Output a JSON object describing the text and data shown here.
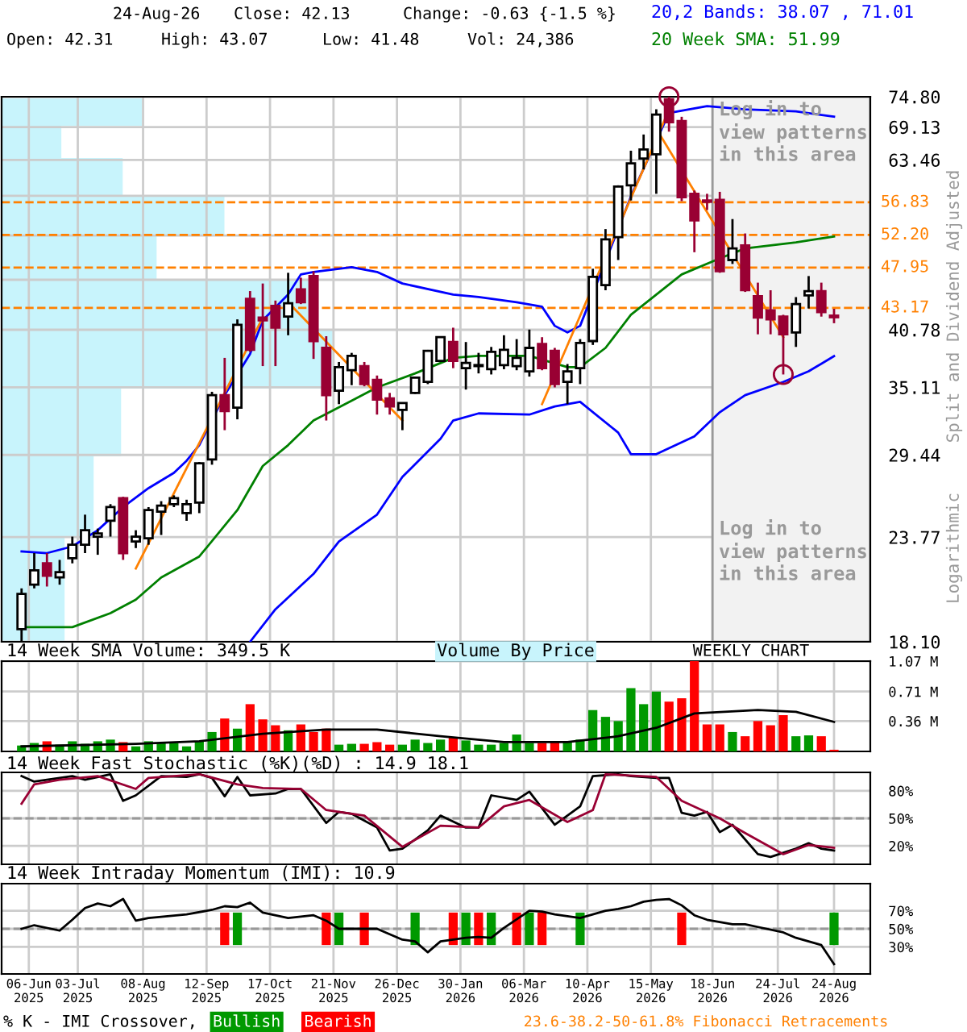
{
  "chart_data": [
    {
      "type": "candlestick",
      "x": [
        "2025-06-02",
        "2025-06-09",
        "2025-06-16",
        "2025-06-23",
        "2025-06-30",
        "2025-07-07",
        "2025-07-14",
        "2025-07-21",
        "2025-07-28",
        "2025-08-04",
        "2025-08-11",
        "2025-08-18",
        "2025-08-25",
        "2025-09-01",
        "2025-09-08",
        "2025-09-15",
        "2025-09-22",
        "2025-09-29",
        "2025-10-06",
        "2025-10-13",
        "2025-10-20",
        "2025-10-27",
        "2025-11-03",
        "2025-11-10",
        "2025-11-17",
        "2025-11-24",
        "2025-12-01",
        "2025-12-08",
        "2025-12-15",
        "2025-12-22",
        "2025-12-29",
        "2026-01-05",
        "2026-01-12",
        "2026-01-19",
        "2026-01-26",
        "2026-02-02",
        "2026-02-09",
        "2026-02-16",
        "2026-02-23",
        "2026-03-02",
        "2026-03-09",
        "2026-03-16",
        "2026-03-23",
        "2026-03-30",
        "2026-04-06",
        "2026-04-13",
        "2026-04-20",
        "2026-04-27",
        "2026-05-04",
        "2026-05-11",
        "2026-05-18",
        "2026-05-25",
        "2026-06-01",
        "2026-06-08",
        "2026-06-15",
        "2026-06-22",
        "2026-06-29",
        "2026-07-06",
        "2026-07-13",
        "2026-07-20",
        "2026-07-27",
        "2026-08-03",
        "2026-08-10",
        "2026-08-17",
        "2026-08-24"
      ],
      "ohlc": [
        [
          18.7,
          20.8,
          18.1,
          20.5
        ],
        [
          21.0,
          22.8,
          20.8,
          21.8
        ],
        [
          22.2,
          22.8,
          20.9,
          21.5
        ],
        [
          21.4,
          22.4,
          21.0,
          21.7
        ],
        [
          22.5,
          23.8,
          22.2,
          23.3
        ],
        [
          23.3,
          25.2,
          22.8,
          24.2
        ],
        [
          23.8,
          24.3,
          22.7,
          24.0
        ],
        [
          24.8,
          25.9,
          23.8,
          25.7
        ],
        [
          26.3,
          26.4,
          22.4,
          22.8
        ],
        [
          23.5,
          24.2,
          23.1,
          23.8
        ],
        [
          23.7,
          25.7,
          23.3,
          25.5
        ],
        [
          25.4,
          26.1,
          23.9,
          25.8
        ],
        [
          25.9,
          26.5,
          25.7,
          26.3
        ],
        [
          25.3,
          26.2,
          24.8,
          25.9
        ],
        [
          26.0,
          28.9,
          25.3,
          28.8
        ],
        [
          29.1,
          34.7,
          28.7,
          34.4
        ],
        [
          34.4,
          37.9,
          31.4,
          33.0
        ],
        [
          33.3,
          41.9,
          32.3,
          41.3
        ],
        [
          44.2,
          45.1,
          38.5,
          38.7
        ],
        [
          42.1,
          46.0,
          37.1,
          41.8
        ],
        [
          43.4,
          44.0,
          37.1,
          41.0
        ],
        [
          42.2,
          47.3,
          40.2,
          43.7
        ],
        [
          45.3,
          46.7,
          43.6,
          43.8
        ],
        [
          46.9,
          47.5,
          37.8,
          39.6
        ],
        [
          38.9,
          40.1,
          32.2,
          34.4
        ],
        [
          34.8,
          37.5,
          33.6,
          37.0
        ],
        [
          36.7,
          38.4,
          35.3,
          38.1
        ],
        [
          37.1,
          37.5,
          35.2,
          35.4
        ],
        [
          35.8,
          36.2,
          32.7,
          34.0
        ],
        [
          34.1,
          34.6,
          32.7,
          33.4
        ],
        [
          33.1,
          33.7,
          31.4,
          33.7
        ],
        [
          34.6,
          36.1,
          34.5,
          36.0
        ],
        [
          35.6,
          38.7,
          35.4,
          38.6
        ],
        [
          37.6,
          40.1,
          37.5,
          40.0
        ],
        [
          39.5,
          41.0,
          36.9,
          37.6
        ],
        [
          36.9,
          39.5,
          34.9,
          37.4
        ],
        [
          37.1,
          38.4,
          36.4,
          37.2
        ],
        [
          36.8,
          39.0,
          36.3,
          38.5
        ],
        [
          37.2,
          40.2,
          36.8,
          38.7
        ],
        [
          37.1,
          39.8,
          36.7,
          37.9
        ],
        [
          36.6,
          40.8,
          36.1,
          38.9
        ],
        [
          39.3,
          40.0,
          36.7,
          36.9
        ],
        [
          38.6,
          38.9,
          35.1,
          35.4
        ],
        [
          35.6,
          37.3,
          33.6,
          36.6
        ],
        [
          36.9,
          39.8,
          35.4,
          39.4
        ],
        [
          39.6,
          47.8,
          39.2,
          46.8
        ],
        [
          45.8,
          53.0,
          45.2,
          51.6
        ],
        [
          51.9,
          59.4,
          48.9,
          59.2
        ],
        [
          59.4,
          65.0,
          57.1,
          62.9
        ],
        [
          63.7,
          67.8,
          61.9,
          65.2
        ],
        [
          64.4,
          72.4,
          58.1,
          71.4
        ],
        [
          74.3,
          74.8,
          68.3,
          70.0
        ],
        [
          70.2,
          71.0,
          57.0,
          57.6
        ],
        [
          58.1,
          58.6,
          49.9,
          54.2
        ],
        [
          57.1,
          58.1,
          55.7,
          56.9
        ],
        [
          57.2,
          58.4,
          47.3,
          47.5
        ],
        [
          48.9,
          54.4,
          48.4,
          50.4
        ],
        [
          50.8,
          52.4,
          45.0,
          45.2
        ],
        [
          44.5,
          46.1,
          40.3,
          42.1
        ],
        [
          42.9,
          45.2,
          40.3,
          41.9
        ],
        [
          42.2,
          42.4,
          36.3,
          40.3
        ],
        [
          40.5,
          44.4,
          39.0,
          43.6
        ],
        [
          44.6,
          46.9,
          43.1,
          45.1
        ],
        [
          45.1,
          46.1,
          42.2,
          42.7
        ],
        [
          42.31,
          43.07,
          41.48,
          42.13
        ]
      ],
      "colors": [
        "#ffffff",
        "#ffffff",
        "#990033",
        "#ffffff",
        "#ffffff",
        "#ffffff",
        "#ffffff",
        "#ffffff",
        "#990033",
        "#ffffff",
        "#ffffff",
        "#ffffff",
        "#ffffff",
        "#ffffff",
        "#ffffff",
        "#ffffff",
        "#990033",
        "#ffffff",
        "#990033",
        "#990033",
        "#990033",
        "#ffffff",
        "#990033",
        "#990033",
        "#990033",
        "#ffffff",
        "#ffffff",
        "#990033",
        "#990033",
        "#990033",
        "#ffffff",
        "#ffffff",
        "#ffffff",
        "#ffffff",
        "#990033",
        "#ffffff",
        "#ffffff",
        "#ffffff",
        "#ffffff",
        "#ffffff",
        "#ffffff",
        "#990033",
        "#990033",
        "#ffffff",
        "#ffffff",
        "#ffffff",
        "#ffffff",
        "#ffffff",
        "#ffffff",
        "#ffffff",
        "#ffffff",
        "#990033",
        "#990033",
        "#990033",
        "#990033",
        "#990033",
        "#ffffff",
        "#990033",
        "#990033",
        "#990033",
        "#990033",
        "#ffffff",
        "#ffffff",
        "#990033",
        "#990033"
      ],
      "series": [
        {
          "type": "line",
          "name": "20,2 Bands: 38.07 , 71.01",
          "color": "#0000ff",
          "x": [
            "2025-06-02",
            "2025-06-16",
            "2025-06-30",
            "2025-07-14",
            "2025-07-28",
            "2025-08-11",
            "2025-08-25",
            "2025-09-01",
            "2025-09-08",
            "2025-09-22",
            "2025-10-06",
            "2025-10-13",
            "2025-10-27",
            "2025-11-03",
            "2025-11-10",
            "2025-12-01",
            "2025-12-15",
            "2025-12-29",
            "2026-01-26",
            "2026-02-09",
            "2026-03-02",
            "2026-03-16",
            "2026-03-23",
            "2026-03-30",
            "2026-04-06",
            "2026-05-04",
            "2026-05-25",
            "2026-06-15",
            "2026-07-06",
            "2026-08-03",
            "2026-08-24"
          ],
          "values": [
            22.9,
            22.8,
            23.2,
            24.2,
            25.7,
            27.0,
            28.1,
            29.0,
            30.2,
            34.4,
            38.3,
            41.8,
            44.7,
            47.1,
            47.4,
            48.0,
            47.4,
            46.0,
            44.7,
            44.4,
            43.8,
            43.3,
            41.2,
            40.5,
            41.2,
            57.7,
            71.7,
            73.0,
            72.4,
            72.0,
            71.01
          ]
        },
        {
          "type": "line",
          "color": "#0000ff",
          "x": [
            "2025-10-06",
            "2025-10-20",
            "2025-11-10",
            "2025-11-24",
            "2025-12-15",
            "2025-12-29",
            "2026-01-19",
            "2026-01-26",
            "2026-02-09",
            "2026-03-09",
            "2026-03-23",
            "2026-04-06",
            "2026-04-27",
            "2026-05-04",
            "2026-05-18",
            "2026-06-08",
            "2026-06-22",
            "2026-07-06",
            "2026-07-27",
            "2026-08-10",
            "2026-08-24"
          ],
          "values": [
            18.1,
            19.7,
            21.6,
            23.5,
            25.2,
            27.8,
            30.7,
            32.2,
            32.8,
            32.7,
            33.4,
            33.8,
            31.2,
            29.5,
            29.5,
            30.9,
            32.9,
            34.4,
            35.6,
            36.6,
            38.07
          ]
        },
        {
          "type": "line",
          "name": "20 Week SMA: 51.99",
          "color": "#008000",
          "x": [
            "2025-06-02",
            "2025-06-30",
            "2025-07-21",
            "2025-08-04",
            "2025-08-18",
            "2025-09-08",
            "2025-09-29",
            "2025-10-13",
            "2025-10-27",
            "2025-11-10",
            "2025-12-01",
            "2025-12-15",
            "2026-01-05",
            "2026-01-26",
            "2026-02-09",
            "2026-03-09",
            "2026-03-30",
            "2026-04-06",
            "2026-04-20",
            "2026-05-04",
            "2026-06-01",
            "2026-06-22",
            "2026-07-06",
            "2026-08-03",
            "2026-08-24"
          ],
          "values": [
            18.8,
            18.8,
            19.5,
            20.2,
            21.4,
            22.6,
            25.5,
            28.6,
            30.2,
            32.2,
            33.9,
            35.1,
            36.4,
            37.9,
            38.1,
            38.1,
            37.0,
            37.0,
            38.9,
            42.4,
            47.1,
            49.1,
            50.4,
            51.2,
            51.99
          ]
        },
        {
          "type": "line",
          "color": "#ff8000",
          "x": [
            "2025-08-04",
            "2025-10-13"
          ],
          "values": [
            21.9,
            42.1
          ]
        },
        {
          "type": "line",
          "color": "#ff8000",
          "x": [
            "2025-10-27",
            "2025-12-29"
          ],
          "values": [
            43.8,
            32.2
          ]
        },
        {
          "type": "line",
          "color": "#ff8000",
          "x": [
            "2026-03-16",
            "2026-05-25"
          ],
          "values": [
            33.6,
            72.3
          ]
        },
        {
          "type": "line",
          "color": "#ff8000",
          "x": [
            "2026-05-18",
            "2026-07-27"
          ],
          "values": [
            68.8,
            40.0
          ]
        },
        {
          "type": "scatter",
          "marker": "circle",
          "color": "#990033",
          "x": [
            "2026-05-25",
            "2026-07-27"
          ],
          "values": [
            74.8,
            36.3
          ]
        }
      ],
      "xlim": [
        "2025-05-22",
        "2026-09-13"
      ],
      "xticks": [
        {
          "value": "2025-06-06",
          "label": null
        },
        {
          "value": "2025-07-03",
          "label": null
        },
        {
          "value": "2025-08-08",
          "label": null
        },
        {
          "value": "2025-09-12",
          "label": null
        },
        {
          "value": "2025-10-17",
          "label": null
        },
        {
          "value": "2025-11-21",
          "label": null
        },
        {
          "value": "2025-12-26",
          "label": null
        },
        {
          "value": "2026-01-30",
          "label": null
        },
        {
          "value": "2026-03-06",
          "label": null
        },
        {
          "value": "2026-04-10",
          "label": null
        },
        {
          "value": "2026-05-15",
          "label": null
        },
        {
          "value": "2026-06-18",
          "label": null
        },
        {
          "value": "2026-07-24",
          "label": null
        },
        {
          "value": "2026-08-24",
          "label": null
        }
      ],
      "ylim": [
        18.1,
        74.8
      ],
      "log": true,
      "yticks": [
        {
          "value": 18.1,
          "label": "18.10"
        },
        23.77,
        29.44,
        35.11,
        40.78,
        {
          "value": 46.45,
          "label": null
        },
        {
          "value": 52.12,
          "label": null
        },
        {
          "value": 57.79,
          "label": null
        },
        63.46,
        69.13,
        {
          "value": 74.8,
          "label": "74.80"
        }
      ],
      "grid": true,
      "tick_labels": "y",
      "legend": "top right",
      "ref_lines": [
        {
          "axis": "y",
          "value": 56.83,
          "label": "56.83",
          "color": "#ff8000",
          "line_style": "dashed"
        },
        {
          "axis": "y",
          "value": 52.2,
          "label": "52.20",
          "color": "#ff8000",
          "line_style": "dashed"
        },
        {
          "axis": "y",
          "value": 47.95,
          "label": "47.95",
          "color": "#ff8000",
          "line_style": "dashed"
        },
        {
          "axis": "y",
          "value": 43.17,
          "label": "43.17",
          "color": "#ff8000",
          "line_style": "dashed"
        }
      ],
      "bands": [
        {
          "axis": "x",
          "from": "2026-06-18",
          "to": "2026-09-13",
          "color": "#f2f2f2"
        }
      ],
      "annotations": [
        "Log in to\nview patterns\nin this area",
        "Log in to\nview patterns\nin this area",
        "Split and Dividend Adjusted",
        "Logarithmic",
        "24-Aug-26",
        "Close: 42.13",
        "Change: -0.63 {-1.5 %}",
        "Open: 42.31",
        "High: 43.07",
        "Low: 41.48",
        "Vol: 24,386"
      ]
    },
    {
      "type": "bar",
      "title": "14 Week SMA Volume: 349.5 K",
      "x": [
        "2025-06-02",
        "2025-06-09",
        "2025-06-16",
        "2025-06-23",
        "2025-06-30",
        "2025-07-07",
        "2025-07-14",
        "2025-07-21",
        "2025-07-28",
        "2025-08-04",
        "2025-08-11",
        "2025-08-18",
        "2025-08-25",
        "2025-09-01",
        "2025-09-08",
        "2025-09-15",
        "2025-09-22",
        "2025-09-29",
        "2025-10-06",
        "2025-10-13",
        "2025-10-20",
        "2025-10-27",
        "2025-11-03",
        "2025-11-10",
        "2025-11-17",
        "2025-11-24",
        "2025-12-01",
        "2025-12-08",
        "2025-12-15",
        "2025-12-22",
        "2025-12-29",
        "2026-01-05",
        "2026-01-12",
        "2026-01-19",
        "2026-01-26",
        "2026-02-02",
        "2026-02-09",
        "2026-02-16",
        "2026-02-23",
        "2026-03-02",
        "2026-03-09",
        "2026-03-16",
        "2026-03-23",
        "2026-03-30",
        "2026-04-06",
        "2026-04-13",
        "2026-04-20",
        "2026-04-27",
        "2026-05-04",
        "2026-05-11",
        "2026-05-18",
        "2026-05-25",
        "2026-06-01",
        "2026-06-08",
        "2026-06-15",
        "2026-06-22",
        "2026-06-29",
        "2026-07-06",
        "2026-07-13",
        "2026-07-20",
        "2026-07-27",
        "2026-08-03",
        "2026-08-10",
        "2026-08-17",
        "2026-08-24"
      ],
      "series": [
        {
          "type": "bar",
          "colors": [
            "#009900",
            "#009900",
            "#ff0000",
            "#009900",
            "#009900",
            "#009900",
            "#009900",
            "#009900",
            "#ff0000",
            "#009900",
            "#009900",
            "#009900",
            "#009900",
            "#009900",
            "#009900",
            "#009900",
            "#ff0000",
            "#009900",
            "#ff0000",
            "#ff0000",
            "#ff0000",
            "#009900",
            "#ff0000",
            "#ff0000",
            "#ff0000",
            "#009900",
            "#009900",
            "#ff0000",
            "#ff0000",
            "#ff0000",
            "#009900",
            "#009900",
            "#009900",
            "#009900",
            "#ff0000",
            "#009900",
            "#009900",
            "#009900",
            "#009900",
            "#009900",
            "#009900",
            "#ff0000",
            "#ff0000",
            "#009900",
            "#009900",
            "#009900",
            "#009900",
            "#009900",
            "#009900",
            "#009900",
            "#009900",
            "#ff0000",
            "#ff0000",
            "#ff0000",
            "#ff0000",
            "#ff0000",
            "#009900",
            "#ff0000",
            "#ff0000",
            "#ff0000",
            "#ff0000",
            "#009900",
            "#009900",
            "#ff0000",
            "#ff0000"
          ],
          "values": [
            0.07,
            0.1,
            0.12,
            0.08,
            0.12,
            0.09,
            0.12,
            0.14,
            0.11,
            0.06,
            0.12,
            0.1,
            0.1,
            0.06,
            0.12,
            0.23,
            0.39,
            0.27,
            0.56,
            0.38,
            0.31,
            0.25,
            0.32,
            0.23,
            0.27,
            0.08,
            0.09,
            0.09,
            0.11,
            0.08,
            0.08,
            0.14,
            0.1,
            0.14,
            0.17,
            0.13,
            0.08,
            0.08,
            0.1,
            0.2,
            0.1,
            0.1,
            0.12,
            0.11,
            0.14,
            0.49,
            0.41,
            0.36,
            0.75,
            0.56,
            0.71,
            0.59,
            0.63,
            1.07,
            0.32,
            0.32,
            0.23,
            0.18,
            0.36,
            0.31,
            0.43,
            0.18,
            0.19,
            0.18,
            0.02
          ]
        },
        {
          "type": "line",
          "color": "#000000",
          "x": [
            "2025-06-02",
            "2025-08-04",
            "2025-09-08",
            "2025-10-13",
            "2025-11-17",
            "2025-12-15",
            "2026-01-19",
            "2026-02-23",
            "2026-03-30",
            "2026-04-27",
            "2026-05-18",
            "2026-06-08",
            "2026-07-13",
            "2026-08-03",
            "2026-08-24"
          ],
          "values": [
            0.06,
            0.09,
            0.12,
            0.21,
            0.26,
            0.26,
            0.18,
            0.11,
            0.11,
            0.18,
            0.28,
            0.45,
            0.49,
            0.47,
            0.35
          ]
        }
      ],
      "xlim": [
        "2025-05-22",
        "2026-09-13"
      ],
      "xticks": [
        {
          "value": "2025-06-06",
          "label": null
        },
        {
          "value": "2025-07-03",
          "label": null
        },
        {
          "value": "2025-08-08",
          "label": null
        },
        {
          "value": "2025-09-12",
          "label": null
        },
        {
          "value": "2025-10-17",
          "label": null
        },
        {
          "value": "2025-11-21",
          "label": null
        },
        {
          "value": "2025-12-26",
          "label": null
        },
        {
          "value": "2026-01-30",
          "label": null
        },
        {
          "value": "2026-03-06",
          "label": null
        },
        {
          "value": "2026-04-10",
          "label": null
        },
        {
          "value": "2026-05-15",
          "label": null
        },
        {
          "value": "2026-06-18",
          "label": null
        },
        {
          "value": "2026-07-24",
          "label": null
        },
        {
          "value": "2026-08-24",
          "label": null
        }
      ],
      "ylim": [
        0,
        1.07
      ],
      "yticks": [
        {
          "value": 0.36,
          "label": "0.36 M"
        },
        {
          "value": 0.71,
          "label": "0.71 M"
        },
        {
          "value": 1.07,
          "label": "1.07 M"
        }
      ],
      "grid": true,
      "tick_labels": "y",
      "annotations": [
        "Volume By Price",
        "WEEKLY CHART"
      ]
    },
    {
      "type": "line",
      "title": "14 Week Fast Stochastic (%K)(%D) : 14.9 18.1",
      "series": [
        {
          "color": "#000000",
          "x": [
            "2025-06-02",
            "2025-06-09",
            "2025-06-30",
            "2025-07-07",
            "2025-07-21",
            "2025-07-28",
            "2025-08-04",
            "2025-08-18",
            "2025-09-01",
            "2025-09-08",
            "2025-09-15",
            "2025-09-22",
            "2025-09-29",
            "2025-10-06",
            "2025-10-20",
            "2025-10-27",
            "2025-11-03",
            "2025-11-17",
            "2025-11-24",
            "2025-12-01",
            "2025-12-15",
            "2025-12-22",
            "2025-12-29",
            "2026-01-12",
            "2026-01-19",
            "2026-02-02",
            "2026-02-09",
            "2026-02-16",
            "2026-03-02",
            "2026-03-09",
            "2026-03-23",
            "2026-04-06",
            "2026-04-13",
            "2026-04-27",
            "2026-05-04",
            "2026-05-18",
            "2026-05-25",
            "2026-06-01",
            "2026-06-08",
            "2026-06-15",
            "2026-06-22",
            "2026-06-29",
            "2026-07-13",
            "2026-07-20",
            "2026-08-03",
            "2026-08-10",
            "2026-08-17",
            "2026-08-24"
          ],
          "values": [
            96,
            90,
            96,
            92,
            98,
            69,
            75,
            96,
            95,
            98,
            94,
            74,
            95,
            75,
            77,
            82,
            82,
            45,
            57,
            55,
            40,
            15,
            17,
            37,
            53,
            40,
            40,
            75,
            70,
            79,
            43,
            63,
            96,
            98,
            96,
            94,
            94,
            56,
            53,
            57,
            35,
            43,
            11,
            8,
            17,
            23,
            17,
            14.9
          ]
        },
        {
          "color": "#990033",
          "x": [
            "2025-06-02",
            "2025-06-09",
            "2025-06-23",
            "2025-07-14",
            "2025-08-04",
            "2025-08-11",
            "2025-09-08",
            "2025-09-29",
            "2025-10-13",
            "2025-11-03",
            "2025-11-17",
            "2025-12-08",
            "2025-12-29",
            "2026-01-19",
            "2026-02-09",
            "2026-02-23",
            "2026-03-09",
            "2026-03-30",
            "2026-04-13",
            "2026-04-20",
            "2026-05-18",
            "2026-06-01",
            "2026-06-22",
            "2026-07-06",
            "2026-07-27",
            "2026-08-10",
            "2026-08-24"
          ],
          "values": [
            66,
            87,
            92,
            96,
            82,
            94,
            98,
            87,
            83,
            82,
            59,
            53,
            19,
            42,
            40,
            63,
            70,
            46,
            59,
            98,
            95,
            69,
            50,
            34,
            11,
            21,
            18.1
          ]
        }
      ],
      "xlim": [
        "2025-05-22",
        "2026-09-13"
      ],
      "xticks": [
        {
          "value": "2025-06-06",
          "label": null
        },
        {
          "value": "2025-07-03",
          "label": null
        },
        {
          "value": "2025-08-08",
          "label": null
        },
        {
          "value": "2025-09-12",
          "label": null
        },
        {
          "value": "2025-10-17",
          "label": null
        },
        {
          "value": "2025-11-21",
          "label": null
        },
        {
          "value": "2025-12-26",
          "label": null
        },
        {
          "value": "2026-01-30",
          "label": null
        },
        {
          "value": "2026-03-06",
          "label": null
        },
        {
          "value": "2026-04-10",
          "label": null
        },
        {
          "value": "2026-05-15",
          "label": null
        },
        {
          "value": "2026-06-18",
          "label": null
        },
        {
          "value": "2026-07-24",
          "label": null
        },
        {
          "value": "2026-08-24",
          "label": null
        }
      ],
      "ylim": [
        0,
        100
      ],
      "yticks": [
        {
          "value": 20,
          "label": "20%"
        },
        {
          "value": 50,
          "label": "50%"
        },
        {
          "value": 80,
          "label": "80%"
        }
      ],
      "grid": true,
      "tick_labels": "y",
      "ref_lines": [
        {
          "axis": "y",
          "value": 50,
          "color": "#999999",
          "line_style": "dashed"
        }
      ]
    },
    {
      "type": "line",
      "title": "14 Week Intraday Momentum (IMI): 10.9",
      "series": [
        {
          "type": "line",
          "color": "#000000",
          "x": [
            "2025-06-02",
            "2025-06-09",
            "2025-06-23",
            "2025-06-30",
            "2025-07-07",
            "2025-07-14",
            "2025-07-21",
            "2025-07-28",
            "2025-08-04",
            "2025-08-11",
            "2025-09-01",
            "2025-09-15",
            "2025-09-22",
            "2025-09-29",
            "2025-10-06",
            "2025-10-13",
            "2025-10-27",
            "2025-11-10",
            "2025-11-17",
            "2025-11-24",
            "2025-12-01",
            "2025-12-15",
            "2025-12-22",
            "2025-12-29",
            "2026-01-05",
            "2026-01-12",
            "2026-01-19",
            "2026-02-02",
            "2026-02-09",
            "2026-02-16",
            "2026-02-23",
            "2026-03-09",
            "2026-03-16",
            "2026-03-23",
            "2026-04-06",
            "2026-04-13",
            "2026-04-20",
            "2026-04-27",
            "2026-05-04",
            "2026-05-11",
            "2026-05-18",
            "2026-05-25",
            "2026-06-01",
            "2026-06-08",
            "2026-06-15",
            "2026-06-29",
            "2026-07-06",
            "2026-07-13",
            "2026-07-27",
            "2026-08-03",
            "2026-08-10",
            "2026-08-17",
            "2026-08-24"
          ],
          "values": [
            50,
            54,
            48,
            60,
            73,
            78,
            75,
            83,
            59,
            62,
            66,
            71,
            75,
            74,
            79,
            68,
            62,
            65,
            59,
            50,
            50,
            50,
            44,
            38,
            36,
            24,
            36,
            40,
            41,
            40,
            51,
            70,
            69,
            66,
            62,
            66,
            70,
            72,
            75,
            80,
            82,
            83,
            76,
            65,
            60,
            55,
            55,
            52,
            46,
            40,
            36,
            32,
            10.9
          ]
        },
        {
          "type": "bar",
          "name": "Bullish",
          "color": "#009900",
          "x": [
            "2025-09-29",
            "2025-11-24",
            "2026-01-05",
            "2026-02-02",
            "2026-02-16",
            "2026-03-09",
            "2026-04-06",
            "2026-08-24"
          ],
          "base": [
            32,
            32,
            32,
            32,
            32,
            32,
            32,
            32
          ],
          "values": [
            36,
            36,
            36,
            36,
            36,
            36,
            36,
            36
          ]
        },
        {
          "type": "bar",
          "name": "Bearish",
          "color": "#ff0000",
          "x": [
            "2025-09-22",
            "2025-11-17",
            "2025-12-08",
            "2026-01-26",
            "2026-02-09",
            "2026-03-02",
            "2026-03-16",
            "2026-06-01"
          ],
          "base": [
            32,
            32,
            32,
            32,
            32,
            32,
            32,
            32
          ],
          "values": [
            36,
            36,
            36,
            36,
            36,
            36,
            36,
            36
          ]
        }
      ],
      "xlim": [
        "2025-05-22",
        "2026-09-13"
      ],
      "xticks": [
        {
          "value": "2025-06-06",
          "label": "06-Jun\n2025"
        },
        {
          "value": "2025-07-03",
          "label": "03-Jul\n2025"
        },
        {
          "value": "2025-08-08",
          "label": "08-Aug\n2025"
        },
        {
          "value": "2025-09-12",
          "label": "12-Sep\n2025"
        },
        {
          "value": "2025-10-17",
          "label": "17-Oct\n2025"
        },
        {
          "value": "2025-11-21",
          "label": "21-Nov\n2025"
        },
        {
          "value": "2025-12-26",
          "label": "26-Dec\n2025"
        },
        {
          "value": "2026-01-30",
          "label": "30-Jan\n2026"
        },
        {
          "value": "2026-03-06",
          "label": "06-Mar\n2026"
        },
        {
          "value": "2026-04-10",
          "label": "10-Apr\n2026"
        },
        {
          "value": "2026-05-15",
          "label": "15-May\n2026"
        },
        {
          "value": "2026-06-18",
          "label": "18-Jun\n2026"
        },
        {
          "value": "2026-07-24",
          "label": "24-Jul\n2026"
        },
        {
          "value": "2026-08-24",
          "label": "24-Aug\n2026"
        }
      ],
      "ylim": [
        0,
        100
      ],
      "yticks": [
        {
          "value": 30,
          "label": "30%"
        },
        {
          "value": 50,
          "label": "50%"
        },
        {
          "value": 70,
          "label": "70%"
        }
      ],
      "grid": true,
      "legend": "bottom",
      "legend_title": "% K - IMI Crossover,",
      "ref_lines": [
        {
          "axis": "y",
          "value": 50,
          "color": "#999999",
          "line_style": "dashed"
        }
      ],
      "annotations": [
        "23.6-38.2-50-61.8% Fibonacci Retracements"
      ]
    }
  ]
}
